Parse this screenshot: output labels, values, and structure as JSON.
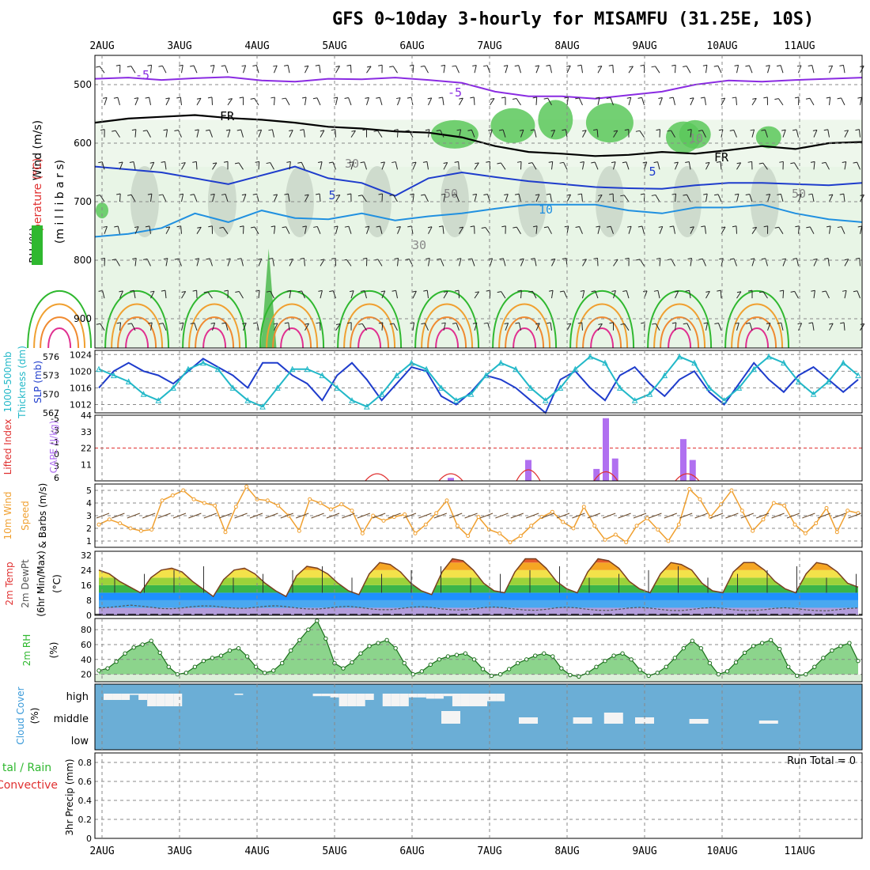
{
  "header": {
    "title": "GFS 0~10day 3-hourly for MISAMFU (31.25E, 10S)"
  },
  "days": [
    "2AUG",
    "3AUG",
    "4AUG",
    "5AUG",
    "6AUG",
    "7AUG",
    "8AUG",
    "9AUG",
    "10AUG",
    "11AUG"
  ],
  "colors": {
    "purple": "#8a2be2",
    "navy": "#1e3ccc",
    "cyan": "#22b8c8",
    "orange": "#f0a030",
    "green": "#2fb82f",
    "red": "#e03030",
    "violet": "#b070f0",
    "cloudblue": "#6baed6"
  },
  "chart_data": [
    {
      "type": "heatmap",
      "panel": "upper-air cross-section",
      "ylabel_parts": [
        "Wind (m/s)",
        "Temperature (°C)",
        "RH (%)"
      ],
      "axis_label": "(m i l l i b a r s)",
      "yticks": [
        500,
        600,
        700,
        800,
        900
      ],
      "ylim": [
        450,
        950
      ],
      "contour_labels": [
        "-5",
        "-5",
        "FR",
        "FR",
        "5",
        "5",
        "10",
        "30",
        "30",
        "50",
        "50",
        "10"
      ],
      "series": [
        {
          "name": "-5",
          "values": [
            490,
            488,
            492,
            489,
            487,
            493,
            495,
            490,
            491,
            488,
            492,
            497,
            512,
            520,
            520,
            524,
            518,
            512,
            500,
            493,
            495,
            492,
            490,
            488
          ]
        },
        {
          "name": "FR",
          "values": [
            565,
            558,
            555,
            552,
            557,
            560,
            565,
            572,
            575,
            580,
            582,
            590,
            605,
            615,
            618,
            622,
            620,
            615,
            618,
            612,
            605,
            610,
            600,
            598
          ]
        },
        {
          "name": "5",
          "values": [
            640,
            645,
            650,
            660,
            670,
            655,
            640,
            660,
            668,
            690,
            660,
            650,
            658,
            665,
            670,
            675,
            677,
            678,
            672,
            668,
            668,
            670,
            672,
            668
          ]
        },
        {
          "name": "10",
          "values": [
            760,
            755,
            745,
            720,
            735,
            715,
            728,
            730,
            720,
            732,
            725,
            720,
            712,
            705,
            705,
            705,
            715,
            720,
            710,
            710,
            705,
            720,
            730,
            735
          ]
        }
      ]
    },
    {
      "type": "line",
      "panel": "thickness and sea level pressure",
      "ylabel_left": "1000-500mb Thickness (dm)",
      "ylabel_right": "SLP (mb)",
      "yticks_left": [
        567,
        570,
        573,
        576
      ],
      "yticks_right": [
        1012,
        1016,
        1020,
        1024
      ],
      "series": [
        {
          "name": "SLP",
          "values": [
            1016,
            1020,
            1022,
            1020,
            1019,
            1017,
            1020,
            1023,
            1021,
            1019,
            1016,
            1022,
            1022,
            1019,
            1017,
            1013,
            1019,
            1022,
            1018,
            1013,
            1017,
            1021,
            1020,
            1014,
            1012,
            1015,
            1019,
            1018,
            1016,
            1013,
            1010,
            1018,
            1020,
            1016,
            1013,
            1019,
            1021,
            1017,
            1014,
            1018,
            1020,
            1015,
            1012,
            1017,
            1022,
            1018,
            1015,
            1019,
            1021,
            1018,
            1015,
            1018
          ]
        },
        {
          "name": "Thickness",
          "values": [
            574,
            573,
            572,
            570,
            569,
            571,
            574,
            575,
            574,
            571,
            569,
            568,
            571,
            574,
            574,
            573,
            571,
            569,
            568,
            570,
            573,
            575,
            574,
            571,
            569,
            570,
            573,
            575,
            574,
            571,
            569,
            571,
            574,
            576,
            575,
            571,
            569,
            570,
            573,
            576,
            575,
            571,
            569,
            571,
            574,
            576,
            575,
            572,
            570,
            572,
            575,
            573
          ]
        }
      ]
    },
    {
      "type": "bar",
      "panel": "instability",
      "ylabel_left": "Lifted Index",
      "ylabel_right": "CAPE (J/kg)",
      "yticks_left": [
        "-5",
        "-3",
        "-1",
        "0",
        "3",
        "6"
      ],
      "yticks_right": [
        11,
        22,
        33,
        44
      ],
      "cape": [
        {
          "day": 6.5,
          "value": 2
        },
        {
          "day": 7.5,
          "value": 14
        },
        {
          "day": 8.38,
          "value": 8
        },
        {
          "day": 8.5,
          "value": 42
        },
        {
          "day": 8.62,
          "value": 15
        },
        {
          "day": 9.5,
          "value": 28
        },
        {
          "day": 9.62,
          "value": 14
        }
      ]
    },
    {
      "type": "line",
      "panel": "10m wind",
      "ylabel": "10m Wind Speed & Barbs (m/s)",
      "yticks": [
        1,
        2,
        3,
        4,
        5
      ],
      "ylim": [
        0.5,
        5.5
      ],
      "series": [
        {
          "name": "Speed",
          "values": [
            2.3,
            2.7,
            2.4,
            2.0,
            1.8,
            1.9,
            4.2,
            4.6,
            5.0,
            4.3,
            4.0,
            3.8,
            1.7,
            3.7,
            5.3,
            4.3,
            4.2,
            3.8,
            3.0,
            1.8,
            4.3,
            4.0,
            3.5,
            3.9,
            3.4,
            1.6,
            3.0,
            2.6,
            2.9,
            3.1,
            1.6,
            2.3,
            3.2,
            4.2,
            2.2,
            1.4,
            2.9,
            1.9,
            1.6,
            0.9,
            1.4,
            2.2,
            2.9,
            3.3,
            2.5,
            2.0,
            3.7,
            2.2,
            1.1,
            1.5,
            0.9,
            2.2,
            2.8,
            1.9,
            1.0,
            2.3,
            5.1,
            4.3,
            2.9,
            3.9,
            5.0,
            3.4,
            1.8,
            2.7,
            4.0,
            3.8,
            2.3,
            1.6,
            2.4,
            3.6,
            1.7,
            3.4,
            3.2
          ]
        }
      ]
    },
    {
      "type": "area",
      "panel": "2m temperature",
      "ylabel": "2m Temp 2m DewPt (6hr Min/Max) (°C)",
      "yticks": [
        0,
        8,
        16,
        24,
        32
      ],
      "ylim": [
        0,
        34
      ],
      "series": [
        {
          "name": "Temp",
          "values": [
            24,
            22,
            18,
            15,
            12,
            20,
            24,
            25,
            23,
            18,
            14,
            10,
            19,
            24,
            25,
            22,
            17,
            13,
            10,
            21,
            26,
            25,
            22,
            17,
            13,
            11,
            22,
            28,
            27,
            23,
            17,
            13,
            11,
            23,
            30,
            29,
            24,
            17,
            13,
            12,
            23,
            30,
            30,
            25,
            18,
            14,
            12,
            23,
            30,
            29,
            25,
            18,
            14,
            12,
            22,
            28,
            27,
            24,
            17,
            13,
            12,
            23,
            28,
            28,
            24,
            18,
            14,
            12,
            22,
            28,
            27,
            23,
            17,
            15
          ]
        },
        {
          "name": "DewPt",
          "values": [
            4,
            4.2,
            4.8,
            5.4,
            4.9,
            4.3,
            3.6,
            3.5,
            3.9,
            4.6,
            5.0,
            4.9,
            4.3,
            3.8,
            3.7,
            4.2,
            4.8,
            5.1,
            4.6,
            3.9,
            3.4,
            3.3,
            3.8,
            4.5,
            4.8,
            4.2,
            3.5,
            3.0,
            3.0,
            3.6,
            4.3,
            4.6,
            4.1,
            3.4,
            2.9,
            2.8,
            3.4,
            4.1,
            4.4,
            4.0,
            3.3,
            2.8,
            2.7,
            3.2,
            4.0,
            4.3,
            3.9,
            3.2,
            2.7,
            2.6,
            3.2,
            3.9,
            4.2,
            3.8,
            3.1,
            2.6,
            2.5,
            3.1,
            3.8,
            4.1,
            3.7,
            3.0,
            2.5,
            2.5,
            3.0,
            3.7,
            4.0,
            3.6,
            2.9,
            2.5,
            2.4,
            3.0,
            3.6,
            3.9
          ]
        }
      ]
    },
    {
      "type": "area",
      "panel": "2m relative humidity",
      "ylabel": "2m RH (%)",
      "yticks": [
        20,
        40,
        60,
        80
      ],
      "ylim": [
        10,
        95
      ],
      "series": [
        {
          "name": "RH",
          "values": [
            25,
            28,
            37,
            48,
            56,
            60,
            65,
            49,
            30,
            20,
            22,
            30,
            38,
            42,
            45,
            52,
            55,
            44,
            30,
            22,
            25,
            35,
            52,
            66,
            80,
            92,
            68,
            35,
            28,
            36,
            48,
            58,
            62,
            66,
            55,
            35,
            20,
            24,
            33,
            40,
            44,
            46,
            48,
            40,
            27,
            18,
            20,
            27,
            35,
            40,
            45,
            48,
            44,
            28,
            19,
            17,
            22,
            30,
            38,
            45,
            48,
            40,
            26,
            18,
            22,
            30,
            42,
            55,
            65,
            55,
            35,
            20,
            24,
            36,
            49,
            58,
            62,
            66,
            54,
            30,
            18,
            20,
            30,
            42,
            52,
            58,
            62,
            38
          ]
        }
      ]
    },
    {
      "type": "bar",
      "panel": "cloud cover",
      "ylabel": "Cloud Cover (%)",
      "ytick_labels": [
        "high",
        "middle",
        "low"
      ],
      "high": [
        0,
        5,
        5,
        5,
        1,
        5,
        10,
        10,
        10,
        10,
        0,
        0,
        0,
        0,
        0,
        0,
        1,
        0,
        0,
        0,
        0,
        0,
        0,
        0,
        0,
        2,
        2,
        3,
        10,
        10,
        10,
        5,
        0,
        10,
        10,
        10,
        3,
        3,
        4,
        4,
        2,
        10,
        10,
        10,
        10,
        6,
        6,
        0,
        0,
        0,
        0,
        0,
        0,
        0,
        0,
        0,
        0,
        0,
        0,
        0,
        0,
        0,
        0,
        0,
        0,
        0,
        0,
        0,
        0,
        0,
        0,
        0,
        0,
        0,
        0,
        0,
        0,
        0,
        0,
        0,
        0,
        0,
        0,
        0,
        0,
        0,
        0,
        0
      ],
      "middle": [],
      "run_total_label": "Run Total = 0"
    },
    {
      "type": "bar",
      "panel": "precipitation",
      "ylabel": "3hr Precip (mm)",
      "legend_labels": [
        "Total / Rain",
        "Convective"
      ],
      "yticks": [
        "0",
        "0.2",
        "0.4",
        "0.6",
        "0.8"
      ],
      "ylim": [
        0,
        0.9
      ],
      "values": []
    }
  ],
  "panel_labels": {
    "wind": "Wind (m/s)",
    "temperature": "Temperature (°C)",
    "rh": "RH (%)",
    "millibars": "(m i l l i b a r s)",
    "thickness": "1000-500mb",
    "thickness2": "Thickness (dm)",
    "slp": "SLP (mb)",
    "li": "Lifted Index",
    "cape": "CAPE (J/kg)",
    "wind10_1": "10m Wind",
    "wind10_2": "Speed",
    "wind10_3": "& Barbs (m/s)",
    "temp2m_1": "2m Temp",
    "temp2m_2": "2m DewPt",
    "temp2m_3": "(6hr Min/Max)",
    "temp2m_4": "(°C)",
    "rh2m": "2m RH",
    "rh2m_unit": "(%)",
    "cloud": "Cloud Cover",
    "cloud_unit": "(%)",
    "precip1": "tal / Rain",
    "precip2": "Convective",
    "precip3": "3hr Precip (mm)",
    "run_total": "Run Total = 0"
  }
}
